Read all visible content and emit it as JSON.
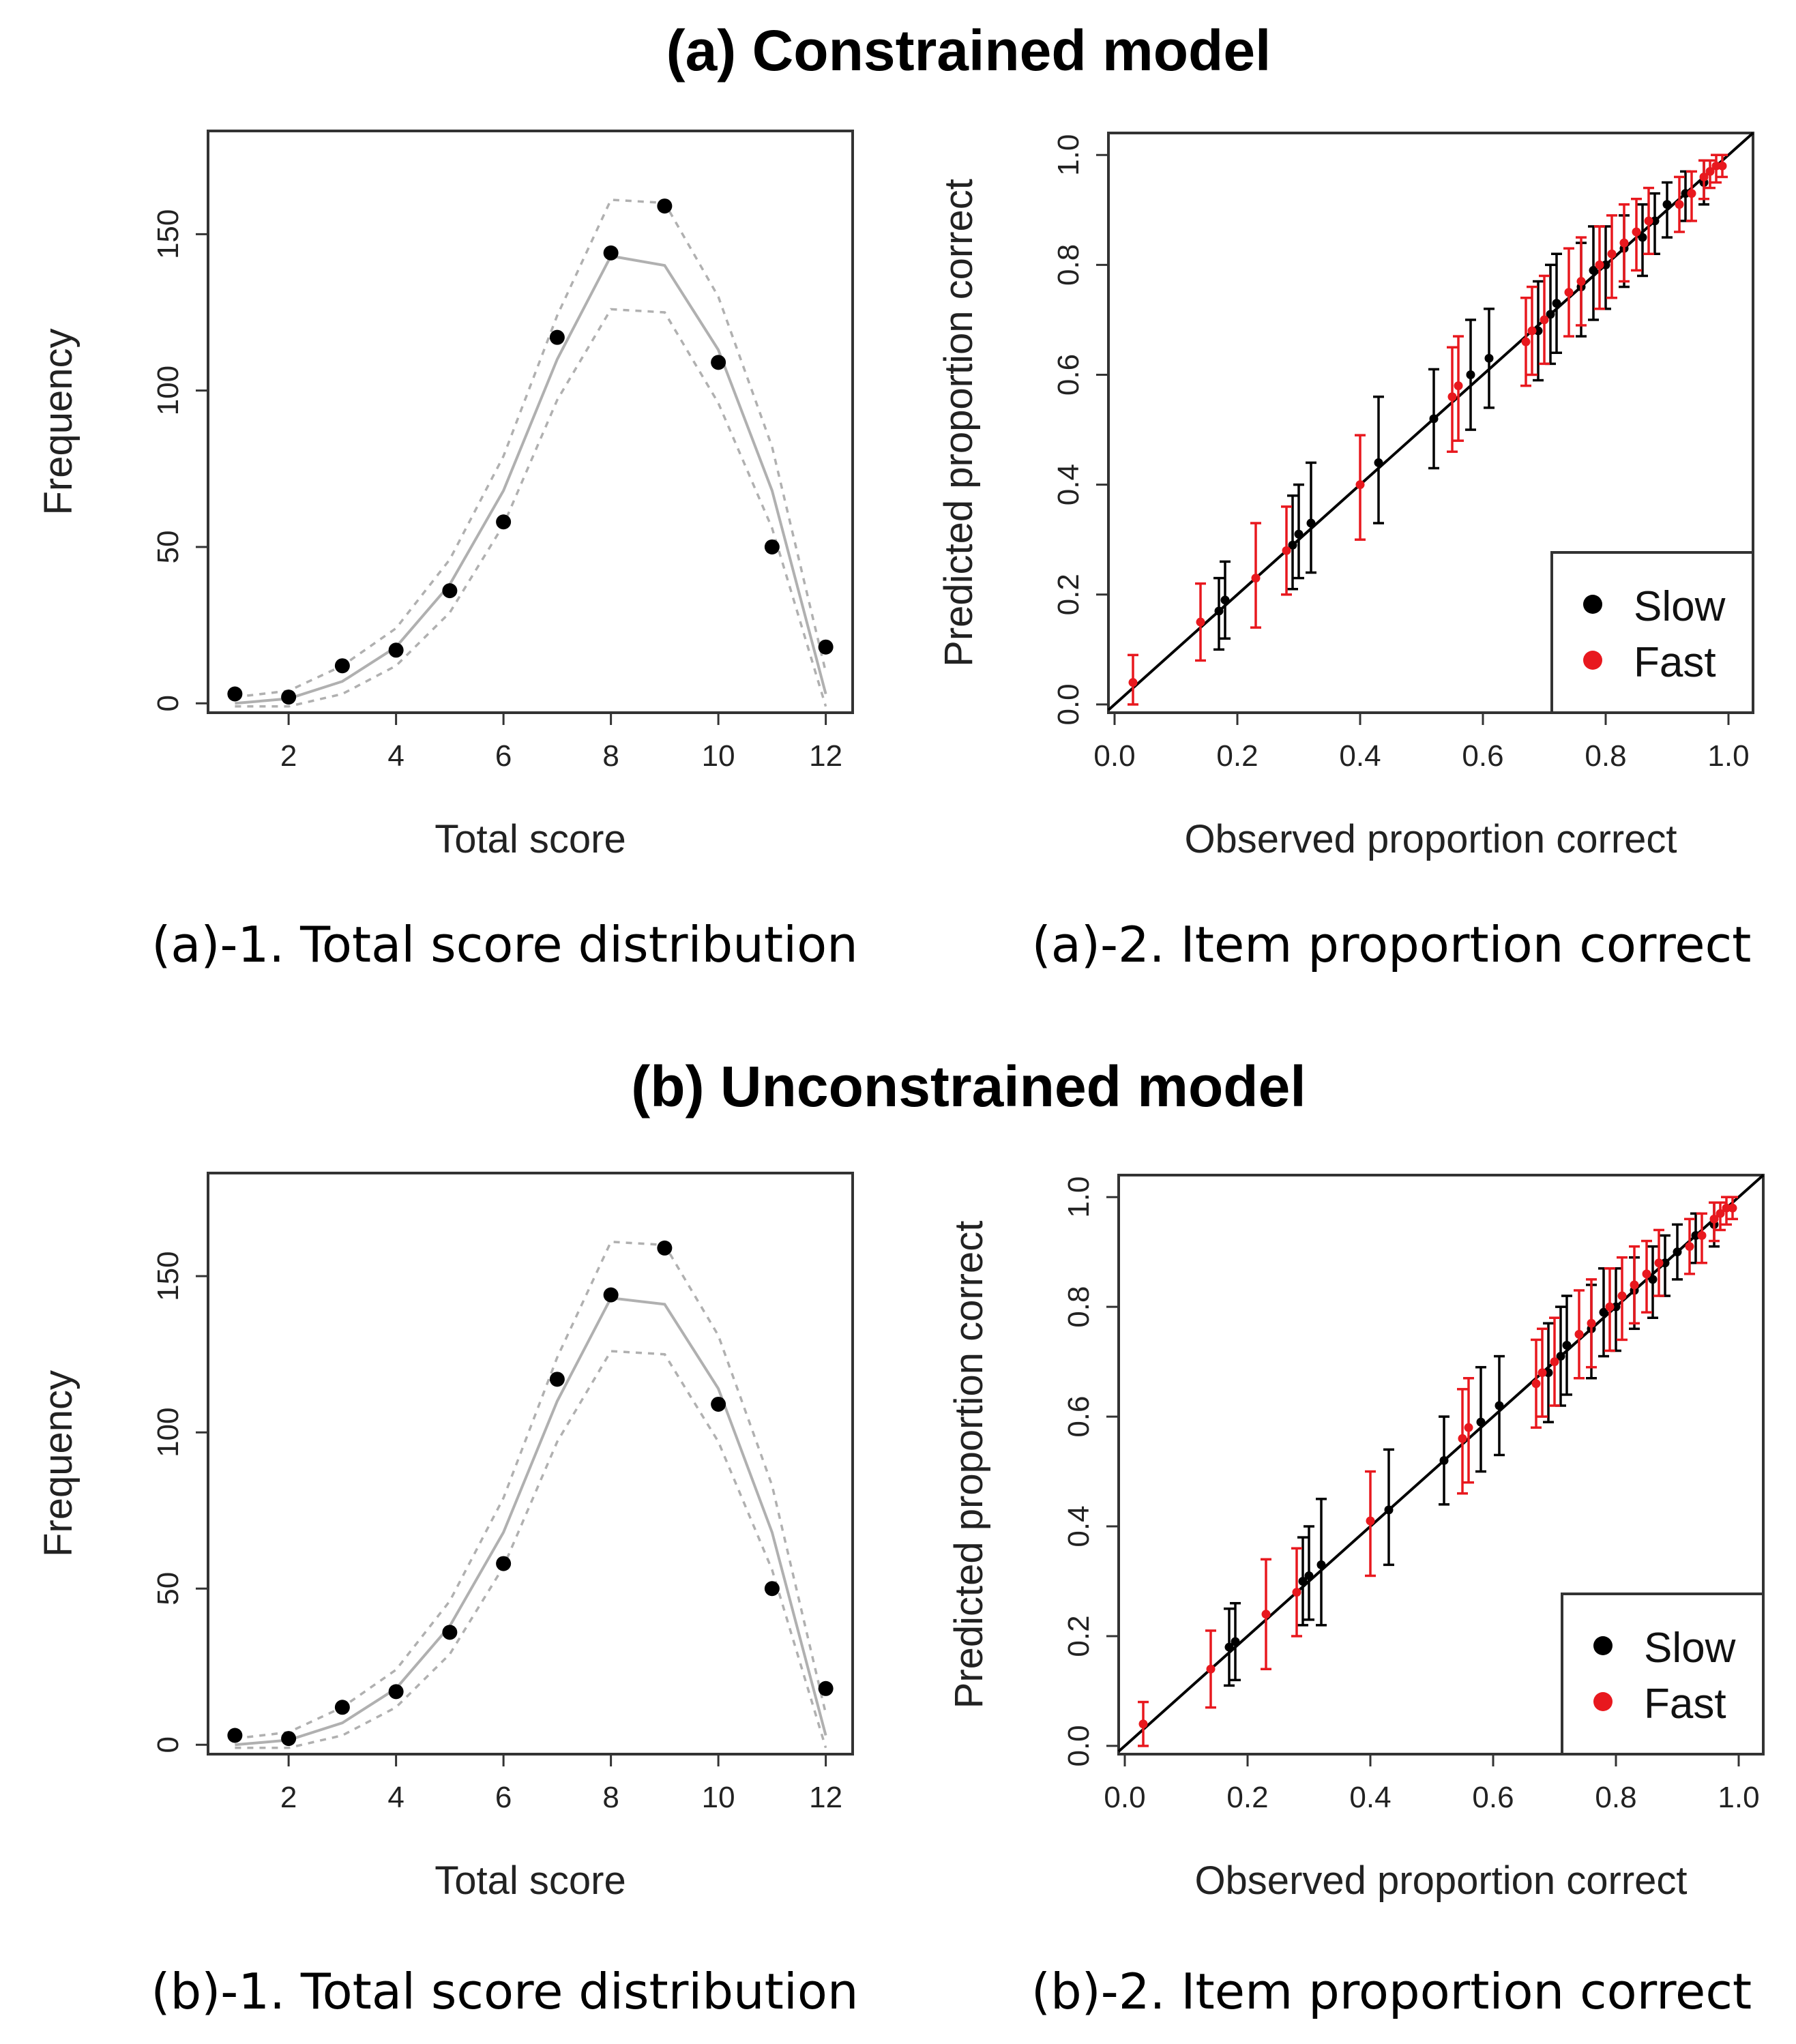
{
  "figure": {
    "titles": {
      "a": "(a) Constrained model",
      "b": "(b) Unconstrained model"
    },
    "captions": {
      "a1": "(a)-1. Total score distribution",
      "a2": "(a)-2. Item proportion correct",
      "b1": "(b)-1. Total score distribution",
      "b2": "(b)-2. Item proportion correct"
    }
  },
  "colors": {
    "slow": "#000000",
    "fast": "#e8181e",
    "model_line": "#b0b0b0",
    "band": "#b0b0b0"
  },
  "chart_data": [
    {
      "id": "a1",
      "type": "scatter",
      "xlabel": "Total score",
      "ylabel": "Frequency",
      "xlim": [
        0.5,
        12.5
      ],
      "ylim": [
        -3,
        183
      ],
      "xticks": [
        2,
        4,
        6,
        8,
        10,
        12
      ],
      "yticks": [
        0,
        50,
        100,
        150
      ],
      "observed": {
        "x": [
          1,
          2,
          3,
          4,
          5,
          6,
          7,
          8,
          9,
          10,
          11,
          12
        ],
        "y": [
          3,
          2,
          12,
          17,
          36,
          58,
          117,
          144,
          159,
          109,
          50,
          18
        ]
      },
      "expected": {
        "x": [
          1,
          2,
          3,
          4,
          5,
          6,
          7,
          8,
          9,
          10,
          11,
          12
        ],
        "y": [
          0,
          1.5,
          7,
          18,
          38,
          68,
          110,
          143,
          140,
          113,
          68,
          3
        ]
      },
      "upper": {
        "x": [
          1,
          2,
          3,
          4,
          5,
          6,
          7,
          8,
          9,
          10,
          11,
          12
        ],
        "y": [
          2,
          4,
          12,
          24,
          46,
          79,
          124,
          161,
          160,
          130,
          82,
          10
        ]
      },
      "lower": {
        "x": [
          1,
          2,
          3,
          4,
          5,
          6,
          7,
          8,
          9,
          10,
          11,
          12
        ],
        "y": [
          -1,
          -1,
          3,
          12,
          29,
          57,
          97,
          126,
          125,
          96,
          56,
          -1
        ]
      }
    },
    {
      "id": "a2",
      "type": "scatter",
      "xlabel": "Observed proportion correct",
      "ylabel": "Predicted proportion correct",
      "xlim": [
        -0.01,
        1.04
      ],
      "ylim": [
        -0.015,
        1.04
      ],
      "xticks": [
        0.0,
        0.2,
        0.4,
        0.6,
        0.8,
        1.0
      ],
      "yticks": [
        0.0,
        0.2,
        0.4,
        0.6,
        0.8,
        1.0
      ],
      "xtick_labels": [
        "0.0",
        "0.2",
        "0.4",
        "0.6",
        "0.8",
        "1.0"
      ],
      "ytick_labels": [
        "0.0",
        "0.2",
        "0.4",
        "0.6",
        "0.8",
        "1.0"
      ],
      "diagonal": true,
      "legend": {
        "position": "bottom-right",
        "entries": [
          "Slow",
          "Fast"
        ]
      },
      "series": [
        {
          "name": "Slow",
          "points": [
            [
              0.17,
              0.17,
              0.1,
              0.23
            ],
            [
              0.18,
              0.19,
              0.12,
              0.26
            ],
            [
              0.29,
              0.29,
              0.21,
              0.38
            ],
            [
              0.3,
              0.31,
              0.23,
              0.4
            ],
            [
              0.32,
              0.33,
              0.24,
              0.44
            ],
            [
              0.43,
              0.44,
              0.33,
              0.56
            ],
            [
              0.52,
              0.52,
              0.43,
              0.61
            ],
            [
              0.58,
              0.6,
              0.5,
              0.7
            ],
            [
              0.61,
              0.63,
              0.54,
              0.72
            ],
            [
              0.69,
              0.68,
              0.59,
              0.77
            ],
            [
              0.71,
              0.71,
              0.62,
              0.8
            ],
            [
              0.72,
              0.73,
              0.64,
              0.82
            ],
            [
              0.76,
              0.76,
              0.67,
              0.84
            ],
            [
              0.78,
              0.79,
              0.7,
              0.87
            ],
            [
              0.8,
              0.8,
              0.72,
              0.87
            ],
            [
              0.83,
              0.83,
              0.76,
              0.89
            ],
            [
              0.86,
              0.85,
              0.78,
              0.91
            ],
            [
              0.88,
              0.88,
              0.82,
              0.93
            ],
            [
              0.9,
              0.91,
              0.85,
              0.95
            ],
            [
              0.93,
              0.93,
              0.88,
              0.97
            ],
            [
              0.96,
              0.95,
              0.91,
              0.99
            ]
          ]
        },
        {
          "name": "Fast",
          "points": [
            [
              0.03,
              0.04,
              0.0,
              0.09
            ],
            [
              0.14,
              0.15,
              0.08,
              0.22
            ],
            [
              0.23,
              0.23,
              0.14,
              0.33
            ],
            [
              0.28,
              0.28,
              0.2,
              0.36
            ],
            [
              0.4,
              0.4,
              0.3,
              0.49
            ],
            [
              0.55,
              0.56,
              0.46,
              0.65
            ],
            [
              0.56,
              0.58,
              0.48,
              0.67
            ],
            [
              0.67,
              0.66,
              0.58,
              0.74
            ],
            [
              0.68,
              0.68,
              0.6,
              0.76
            ],
            [
              0.7,
              0.7,
              0.62,
              0.78
            ],
            [
              0.74,
              0.75,
              0.67,
              0.83
            ],
            [
              0.76,
              0.77,
              0.69,
              0.85
            ],
            [
              0.79,
              0.8,
              0.72,
              0.87
            ],
            [
              0.81,
              0.82,
              0.74,
              0.89
            ],
            [
              0.83,
              0.84,
              0.77,
              0.91
            ],
            [
              0.85,
              0.86,
              0.79,
              0.92
            ],
            [
              0.87,
              0.88,
              0.82,
              0.94
            ],
            [
              0.92,
              0.91,
              0.86,
              0.96
            ],
            [
              0.94,
              0.93,
              0.88,
              0.97
            ],
            [
              0.96,
              0.96,
              0.92,
              0.99
            ],
            [
              0.97,
              0.97,
              0.94,
              0.99
            ],
            [
              0.98,
              0.98,
              0.95,
              1.0
            ],
            [
              0.99,
              0.98,
              0.96,
              1.0
            ]
          ]
        }
      ]
    },
    {
      "id": "b1",
      "type": "scatter",
      "xlabel": "Total score",
      "ylabel": "Frequency",
      "xlim": [
        0.5,
        12.5
      ],
      "ylim": [
        -3,
        183
      ],
      "xticks": [
        2,
        4,
        6,
        8,
        10,
        12
      ],
      "yticks": [
        0,
        50,
        100,
        150
      ],
      "observed": {
        "x": [
          1,
          2,
          3,
          4,
          5,
          6,
          7,
          8,
          9,
          10,
          11,
          12
        ],
        "y": [
          3,
          2,
          12,
          17,
          36,
          58,
          117,
          144,
          159,
          109,
          50,
          18
        ]
      },
      "expected": {
        "x": [
          1,
          2,
          3,
          4,
          5,
          6,
          7,
          8,
          9,
          10,
          11,
          12
        ],
        "y": [
          0,
          1.5,
          7,
          18,
          38,
          68,
          110,
          143,
          141,
          114,
          68,
          3
        ]
      },
      "upper": {
        "x": [
          1,
          2,
          3,
          4,
          5,
          6,
          7,
          8,
          9,
          10,
          11,
          12
        ],
        "y": [
          2,
          4,
          12,
          24,
          46,
          79,
          124,
          161,
          160,
          131,
          83,
          10
        ]
      },
      "lower": {
        "x": [
          1,
          2,
          3,
          4,
          5,
          6,
          7,
          8,
          9,
          10,
          11,
          12
        ],
        "y": [
          -1,
          -1,
          3,
          12,
          29,
          57,
          97,
          126,
          125,
          97,
          56,
          -1
        ]
      }
    },
    {
      "id": "b2",
      "type": "scatter",
      "xlabel": "Observed proportion correct",
      "ylabel": "Predicted proportion correct",
      "xlim": [
        -0.01,
        1.04
      ],
      "ylim": [
        -0.015,
        1.04
      ],
      "xticks": [
        0.0,
        0.2,
        0.4,
        0.6,
        0.8,
        1.0
      ],
      "yticks": [
        0.0,
        0.2,
        0.4,
        0.6,
        0.8,
        1.0
      ],
      "xtick_labels": [
        "0.0",
        "0.2",
        "0.4",
        "0.6",
        "0.8",
        "1.0"
      ],
      "ytick_labels": [
        "0.0",
        "0.2",
        "0.4",
        "0.6",
        "0.8",
        "1.0"
      ],
      "diagonal": true,
      "legend": {
        "position": "bottom-right",
        "entries": [
          "Slow",
          "Fast"
        ]
      },
      "series": [
        {
          "name": "Slow",
          "points": [
            [
              0.17,
              0.18,
              0.11,
              0.25
            ],
            [
              0.18,
              0.19,
              0.12,
              0.26
            ],
            [
              0.29,
              0.3,
              0.22,
              0.38
            ],
            [
              0.3,
              0.31,
              0.23,
              0.4
            ],
            [
              0.32,
              0.33,
              0.22,
              0.45
            ],
            [
              0.43,
              0.43,
              0.33,
              0.54
            ],
            [
              0.52,
              0.52,
              0.44,
              0.6
            ],
            [
              0.58,
              0.59,
              0.5,
              0.69
            ],
            [
              0.61,
              0.62,
              0.53,
              0.71
            ],
            [
              0.69,
              0.68,
              0.59,
              0.77
            ],
            [
              0.71,
              0.71,
              0.62,
              0.8
            ],
            [
              0.72,
              0.73,
              0.64,
              0.82
            ],
            [
              0.76,
              0.76,
              0.67,
              0.84
            ],
            [
              0.78,
              0.79,
              0.71,
              0.87
            ],
            [
              0.8,
              0.8,
              0.72,
              0.87
            ],
            [
              0.83,
              0.83,
              0.76,
              0.89
            ],
            [
              0.86,
              0.85,
              0.78,
              0.91
            ],
            [
              0.88,
              0.88,
              0.82,
              0.93
            ],
            [
              0.9,
              0.9,
              0.85,
              0.95
            ],
            [
              0.93,
              0.93,
              0.88,
              0.97
            ],
            [
              0.96,
              0.95,
              0.91,
              0.99
            ]
          ]
        },
        {
          "name": "Fast",
          "points": [
            [
              0.03,
              0.04,
              0.0,
              0.08
            ],
            [
              0.14,
              0.14,
              0.07,
              0.21
            ],
            [
              0.23,
              0.24,
              0.14,
              0.34
            ],
            [
              0.28,
              0.28,
              0.2,
              0.36
            ],
            [
              0.4,
              0.41,
              0.31,
              0.5
            ],
            [
              0.55,
              0.56,
              0.46,
              0.65
            ],
            [
              0.56,
              0.58,
              0.48,
              0.67
            ],
            [
              0.67,
              0.66,
              0.58,
              0.74
            ],
            [
              0.68,
              0.68,
              0.6,
              0.76
            ],
            [
              0.7,
              0.7,
              0.62,
              0.78
            ],
            [
              0.74,
              0.75,
              0.67,
              0.83
            ],
            [
              0.76,
              0.77,
              0.69,
              0.85
            ],
            [
              0.79,
              0.8,
              0.72,
              0.87
            ],
            [
              0.81,
              0.82,
              0.74,
              0.89
            ],
            [
              0.83,
              0.84,
              0.77,
              0.91
            ],
            [
              0.85,
              0.86,
              0.79,
              0.92
            ],
            [
              0.87,
              0.88,
              0.82,
              0.94
            ],
            [
              0.92,
              0.91,
              0.86,
              0.96
            ],
            [
              0.94,
              0.93,
              0.88,
              0.97
            ],
            [
              0.96,
              0.96,
              0.92,
              0.99
            ],
            [
              0.97,
              0.97,
              0.94,
              0.99
            ],
            [
              0.98,
              0.98,
              0.95,
              1.0
            ],
            [
              0.99,
              0.98,
              0.96,
              1.0
            ]
          ]
        }
      ]
    }
  ]
}
